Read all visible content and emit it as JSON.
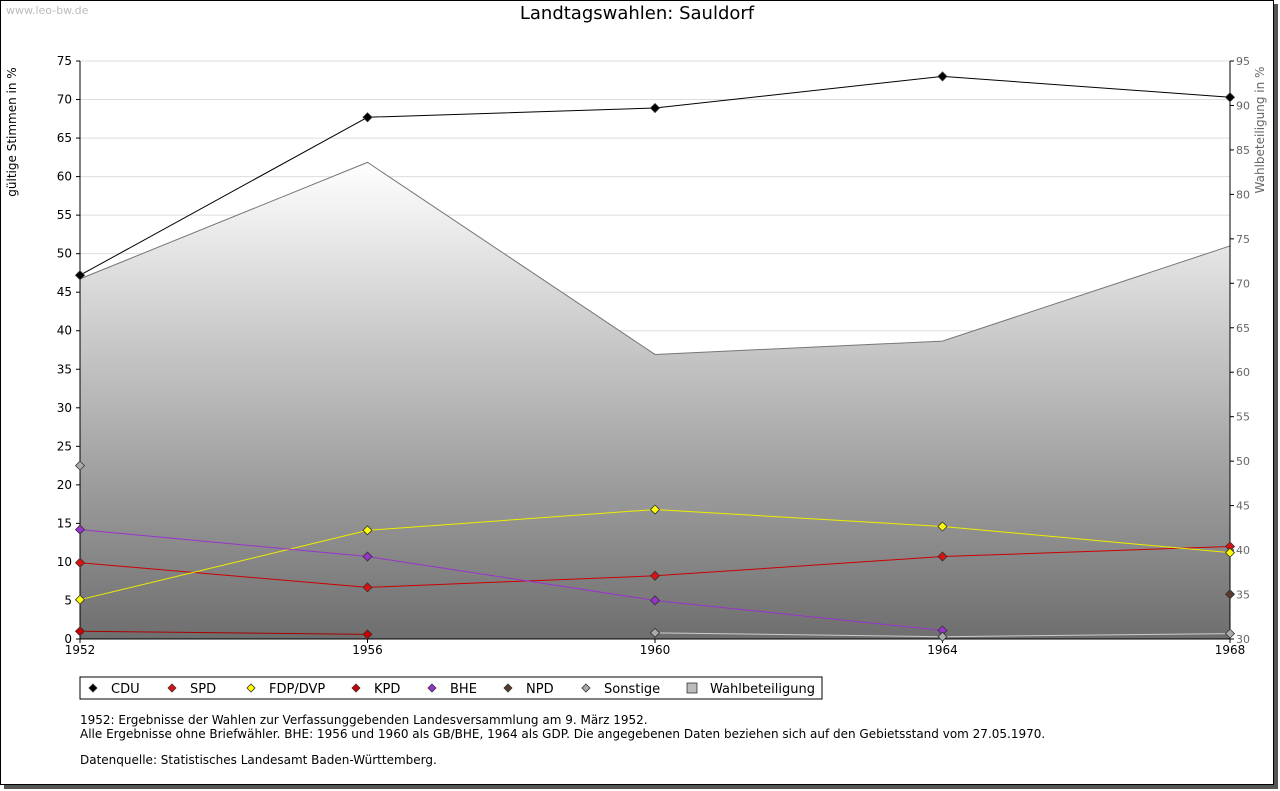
{
  "watermark": "www.leo-bw.de",
  "chart_data": {
    "type": "line",
    "title": "Landtagswahlen: Sauldorf",
    "ylabel": "gültige Stimmen in %",
    "y2label": "Wahlbeteiligung in %",
    "x": [
      1952,
      1956,
      1960,
      1964,
      1968
    ],
    "x_tick_labels": [
      "1952",
      "1956",
      "1960",
      "1964",
      "1968"
    ],
    "ylim": [
      0,
      75
    ],
    "y_ticks": [
      0,
      5,
      10,
      15,
      20,
      25,
      30,
      35,
      40,
      45,
      50,
      55,
      60,
      65,
      70,
      75
    ],
    "y2lim": [
      30,
      95
    ],
    "y2_ticks": [
      30,
      35,
      40,
      45,
      50,
      55,
      60,
      65,
      70,
      75,
      80,
      85,
      90,
      95
    ],
    "grid": true,
    "legend_position": "bottom",
    "series": [
      {
        "name": "CDU",
        "color": "#000000",
        "marker": "#000000",
        "values": [
          47.2,
          67.7,
          68.9,
          73.0,
          70.3
        ]
      },
      {
        "name": "SPD",
        "color": "#cc0000",
        "marker": "#dd1111",
        "values": [
          9.9,
          6.7,
          8.2,
          10.7,
          12.0
        ]
      },
      {
        "name": "FDP/DVP",
        "color": "#eeee00",
        "marker": "#ffff00",
        "values": [
          5.1,
          14.1,
          16.8,
          14.6,
          11.2
        ]
      },
      {
        "name": "KPD",
        "color": "#aa0000",
        "marker": "#cc0000",
        "values": [
          1.0,
          0.6,
          null,
          null,
          null
        ]
      },
      {
        "name": "BHE",
        "color": "#9933cc",
        "marker": "#9933cc",
        "values": [
          14.2,
          10.7,
          5.0,
          1.1,
          null
        ]
      },
      {
        "name": "NPD",
        "color": "#5a3a2a",
        "marker": "#5a3a2a",
        "values": [
          null,
          null,
          null,
          null,
          5.8
        ]
      },
      {
        "name": "Sonstige",
        "color": "#cccccc",
        "marker": "#aaaaaa",
        "values": [
          22.5,
          null,
          0.8,
          0.3,
          0.7
        ]
      }
    ],
    "area_series": {
      "name": "Wahlbeteiligung",
      "axis": "right",
      "values": [
        70.5,
        83.6,
        62.0,
        63.5,
        74.2
      ]
    }
  },
  "legend": {
    "items": [
      {
        "label": "CDU",
        "color": "#000000",
        "shape": "diamond"
      },
      {
        "label": "SPD",
        "color": "#dd1111",
        "shape": "diamond"
      },
      {
        "label": "FDP/DVP",
        "color": "#ffff00",
        "shape": "diamond"
      },
      {
        "label": "KPD",
        "color": "#cc0000",
        "shape": "diamond"
      },
      {
        "label": "BHE",
        "color": "#9933cc",
        "shape": "diamond"
      },
      {
        "label": "NPD",
        "color": "#5a3a2a",
        "shape": "diamond"
      },
      {
        "label": "Sonstige",
        "color": "#aaaaaa",
        "shape": "diamond"
      },
      {
        "label": "Wahlbeteiligung",
        "color": "#bbbbbb",
        "shape": "square"
      }
    ]
  },
  "notes": {
    "line1": "1952: Ergebnisse der Wahlen zur Verfassunggebenden Landesversammlung am 9. März 1952.",
    "line2": "Alle Ergebnisse ohne Briefwähler. BHE: 1956 und 1960 als GB/BHE, 1964 als GDP. Die angegebenen Daten beziehen sich auf den Gebietsstand vom 27.05.1970.",
    "source": "Datenquelle: Statistisches Landesamt Baden-Württemberg."
  }
}
